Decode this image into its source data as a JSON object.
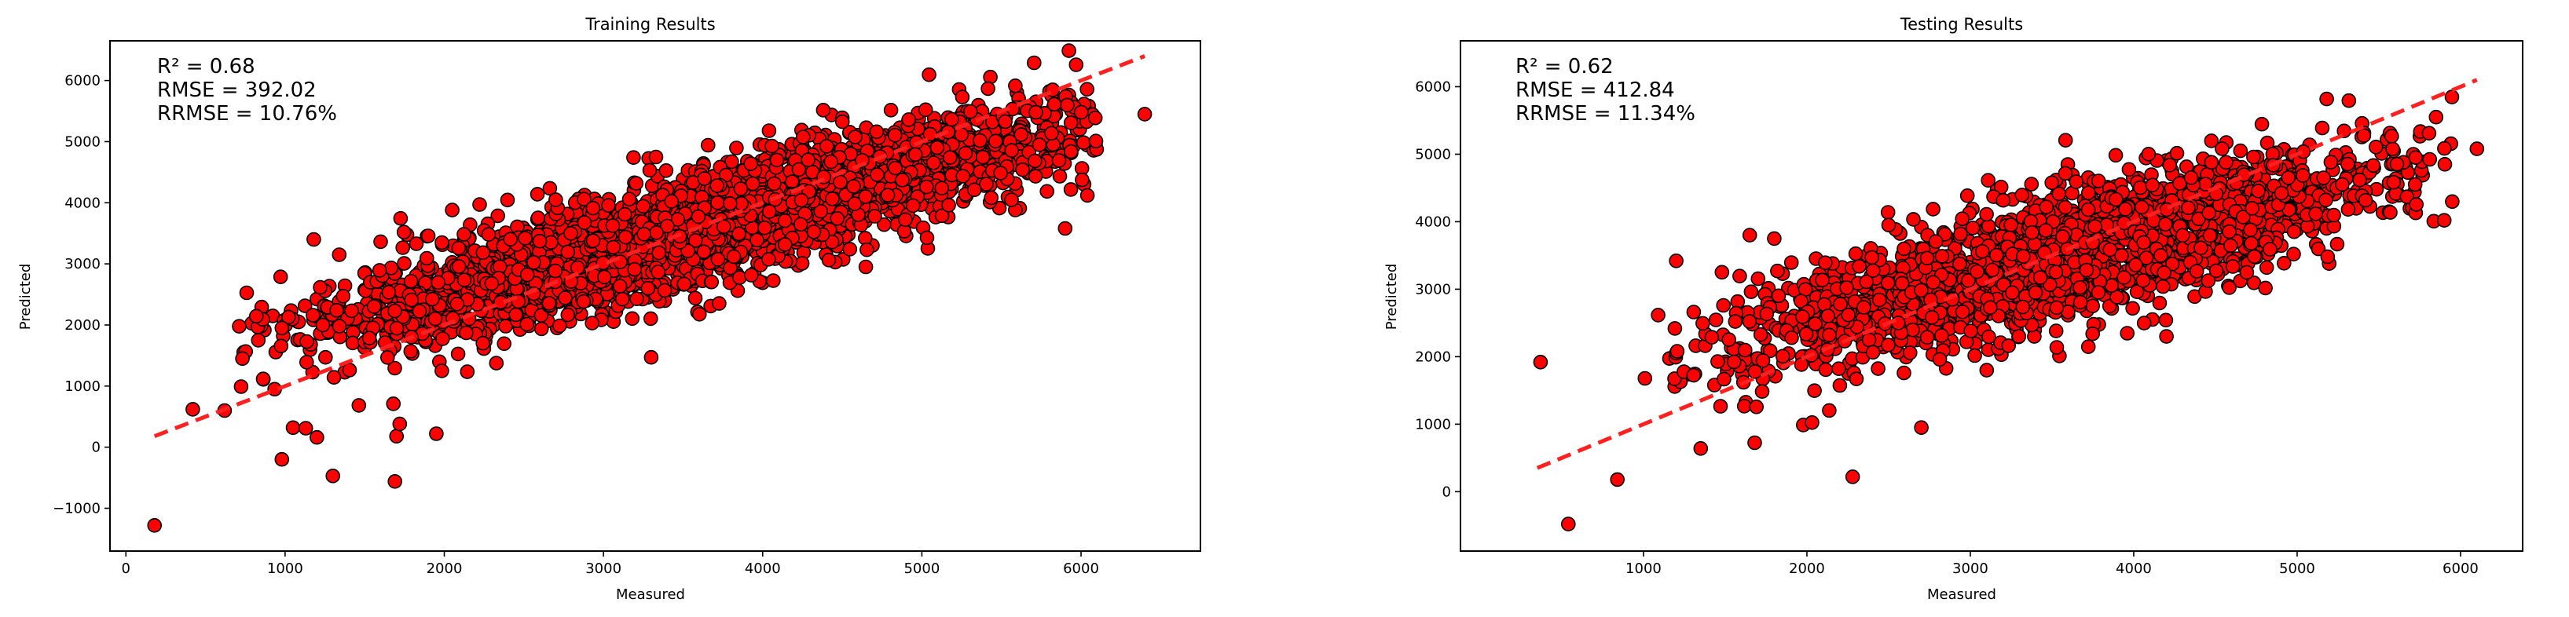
{
  "chart_data": [
    {
      "type": "scatter",
      "title": "Training Results",
      "xlabel": "Measured",
      "ylabel": "Predicted",
      "xlim": [
        -100,
        6750
      ],
      "ylim": [
        -1700,
        6650
      ],
      "xticks": [
        0,
        1000,
        2000,
        3000,
        4000,
        5000,
        6000
      ],
      "yticks": [
        -1000,
        0,
        1000,
        2000,
        3000,
        4000,
        5000,
        6000
      ],
      "xtick_labels": [
        "0",
        "1000",
        "2000",
        "3000",
        "4000",
        "5000",
        "6000"
      ],
      "ytick_labels": [
        "−1000",
        "0",
        "1000",
        "2000",
        "3000",
        "4000",
        "5000",
        "6000"
      ],
      "annotations": [
        "R² = 0.68",
        "RMSE = 392.02",
        "RRMSE = 10.76%"
      ],
      "fit_line": {
        "x": [
          180,
          6400
        ],
        "y": [
          180,
          6400
        ]
      },
      "marker_color": "#ff0000",
      "line_color": "#ff2020",
      "cloud": {
        "n": 3200,
        "x_center": 3650,
        "x_sd": 1150,
        "x_range": [
          700,
          6100
        ],
        "resid_sd": 450,
        "slope": 0.68,
        "intercept": 1150,
        "seed": 11
      },
      "outliers": [
        [
          180,
          -1280
        ],
        [
          420,
          620
        ],
        [
          620,
          600
        ],
        [
          980,
          -200
        ],
        [
          1050,
          320
        ],
        [
          1130,
          310
        ],
        [
          1200,
          160
        ],
        [
          1300,
          -470
        ],
        [
          1680,
          710
        ],
        [
          1700,
          180
        ],
        [
          1720,
          380
        ],
        [
          1690,
          -560
        ],
        [
          1950,
          220
        ],
        [
          980,
          1950
        ],
        [
          1340,
          3150
        ],
        [
          1180,
          3400
        ],
        [
          2050,
          3880
        ],
        [
          5900,
          3580
        ],
        [
          6040,
          4120
        ],
        [
          6400,
          5450
        ],
        [
          3300,
          1470
        ],
        [
          2700,
          4050
        ]
      ]
    },
    {
      "type": "scatter",
      "title": "Testing Results",
      "xlabel": "Measured",
      "ylabel": "Predicted",
      "xlim": [
        -120,
        6380
      ],
      "ylim": [
        -880,
        6680
      ],
      "xticks": [
        1000,
        2000,
        3000,
        4000,
        5000,
        6000
      ],
      "yticks": [
        0,
        1000,
        2000,
        3000,
        4000,
        5000,
        6000
      ],
      "xtick_labels": [
        "1000",
        "2000",
        "3000",
        "4000",
        "5000",
        "6000"
      ],
      "ytick_labels": [
        "0",
        "1000",
        "2000",
        "3000",
        "4000",
        "5000",
        "6000"
      ],
      "annotations": [
        "R² = 0.62",
        "RMSE = 412.84",
        "RRMSE = 11.34%"
      ],
      "fit_line": {
        "x": [
          350,
          6100
        ],
        "y": [
          350,
          6100
        ]
      },
      "marker_color": "#ff0000",
      "line_color": "#ff2020",
      "cloud": {
        "n": 2000,
        "x_center": 3550,
        "x_sd": 1050,
        "x_range": [
          1000,
          5950
        ],
        "resid_sd": 470,
        "slope": 0.62,
        "intercept": 1250,
        "seed": 29
      },
      "outliers": [
        [
          370,
          1920
        ],
        [
          540,
          -480
        ],
        [
          840,
          180
        ],
        [
          1350,
          640
        ],
        [
          2280,
          220
        ],
        [
          2700,
          950
        ],
        [
          1200,
          3420
        ],
        [
          1650,
          3800
        ],
        [
          1800,
          3750
        ],
        [
          2500,
          3950
        ],
        [
          5850,
          5550
        ],
        [
          6100,
          5080
        ],
        [
          5900,
          4020
        ],
        [
          4200,
          2300
        ],
        [
          3100,
          1800
        ]
      ]
    }
  ]
}
